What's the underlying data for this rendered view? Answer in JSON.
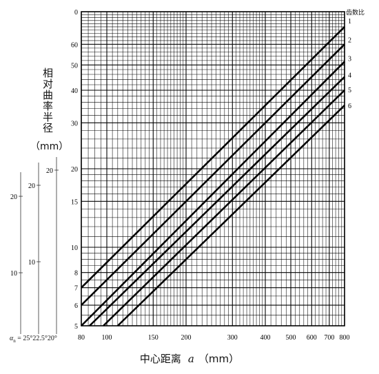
{
  "chart_data": {
    "type": "line",
    "title": "",
    "xlabel": "中心距离",
    "xlabel_var": "a",
    "xlabel_unit": "（mm）",
    "ylabel": "相对曲率半径",
    "ylabel_unit": "（mm）",
    "x_scale": "log",
    "y_scale": "log",
    "xlim": [
      80,
      800
    ],
    "ylim": [
      5,
      80
    ],
    "x_ticks": [
      80,
      100,
      150,
      200,
      300,
      400,
      500,
      600,
      700,
      800
    ],
    "y_ticks": [
      5,
      6,
      7,
      8,
      10,
      15,
      20,
      30,
      40,
      50,
      60
    ],
    "y_top_label": "0",
    "grid": true,
    "legend_title": "齿数比",
    "series": [
      {
        "name": "1",
        "points": [
          [
            80,
            7.0
          ],
          [
            800,
            70.0
          ]
        ]
      },
      {
        "name": "2",
        "points": [
          [
            80,
            6.0
          ],
          [
            800,
            60.0
          ]
        ]
      },
      {
        "name": "3",
        "points": [
          [
            80,
            5.0
          ],
          [
            800,
            51.5
          ]
        ]
      },
      {
        "name": "4",
        "points": [
          [
            86,
            5.0
          ],
          [
            800,
            45.0
          ]
        ]
      },
      {
        "name": "5",
        "points": [
          [
            97,
            5.0
          ],
          [
            800,
            40.0
          ]
        ]
      },
      {
        "name": "6",
        "points": [
          [
            110,
            5.0
          ],
          [
            800,
            35.0
          ]
        ]
      }
    ]
  },
  "alpha_scales": {
    "label_prefix": "α",
    "label_sub": "n",
    "label_rest": " = 25°22.5°20°",
    "scales": [
      {
        "angle": "25°",
        "tick_labels": [
          "20",
          "10"
        ],
        "tick_values": [
          20,
          10
        ]
      },
      {
        "angle": "22.5°",
        "tick_labels": [
          "20",
          "10"
        ],
        "tick_values": [
          20,
          10
        ]
      },
      {
        "angle": "20°",
        "tick_labels": [
          "20"
        ],
        "tick_values": [
          20
        ]
      }
    ]
  }
}
